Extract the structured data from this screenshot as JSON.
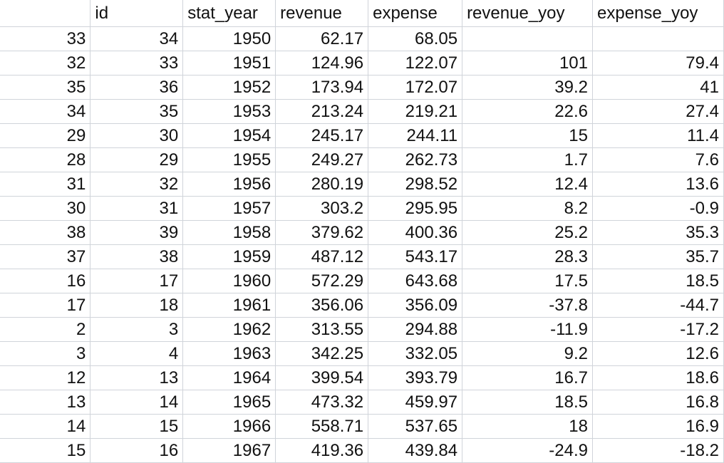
{
  "header": [
    "",
    "id",
    "stat_year",
    "revenue",
    "expense",
    "revenue_yoy",
    "expense_yoy"
  ],
  "rows": [
    [
      "33",
      "34",
      "1950",
      "62.17",
      "68.05",
      "",
      ""
    ],
    [
      "32",
      "33",
      "1951",
      "124.96",
      "122.07",
      "101",
      "79.4"
    ],
    [
      "35",
      "36",
      "1952",
      "173.94",
      "172.07",
      "39.2",
      "41"
    ],
    [
      "34",
      "35",
      "1953",
      "213.24",
      "219.21",
      "22.6",
      "27.4"
    ],
    [
      "29",
      "30",
      "1954",
      "245.17",
      "244.11",
      "15",
      "11.4"
    ],
    [
      "28",
      "29",
      "1955",
      "249.27",
      "262.73",
      "1.7",
      "7.6"
    ],
    [
      "31",
      "32",
      "1956",
      "280.19",
      "298.52",
      "12.4",
      "13.6"
    ],
    [
      "30",
      "31",
      "1957",
      "303.2",
      "295.95",
      "8.2",
      "-0.9"
    ],
    [
      "38",
      "39",
      "1958",
      "379.62",
      "400.36",
      "25.2",
      "35.3"
    ],
    [
      "37",
      "38",
      "1959",
      "487.12",
      "543.17",
      "28.3",
      "35.7"
    ],
    [
      "16",
      "17",
      "1960",
      "572.29",
      "643.68",
      "17.5",
      "18.5"
    ],
    [
      "17",
      "18",
      "1961",
      "356.06",
      "356.09",
      "-37.8",
      "-44.7"
    ],
    [
      "2",
      "3",
      "1962",
      "313.55",
      "294.88",
      "-11.9",
      "-17.2"
    ],
    [
      "3",
      "4",
      "1963",
      "342.25",
      "332.05",
      "9.2",
      "12.6"
    ],
    [
      "12",
      "13",
      "1964",
      "399.54",
      "393.79",
      "16.7",
      "18.6"
    ],
    [
      "13",
      "14",
      "1965",
      "473.32",
      "459.97",
      "18.5",
      "16.8"
    ],
    [
      "14",
      "15",
      "1966",
      "558.71",
      "537.65",
      "18",
      "16.9"
    ],
    [
      "15",
      "16",
      "1967",
      "419.36",
      "439.84",
      "-24.9",
      "-18.2"
    ]
  ]
}
